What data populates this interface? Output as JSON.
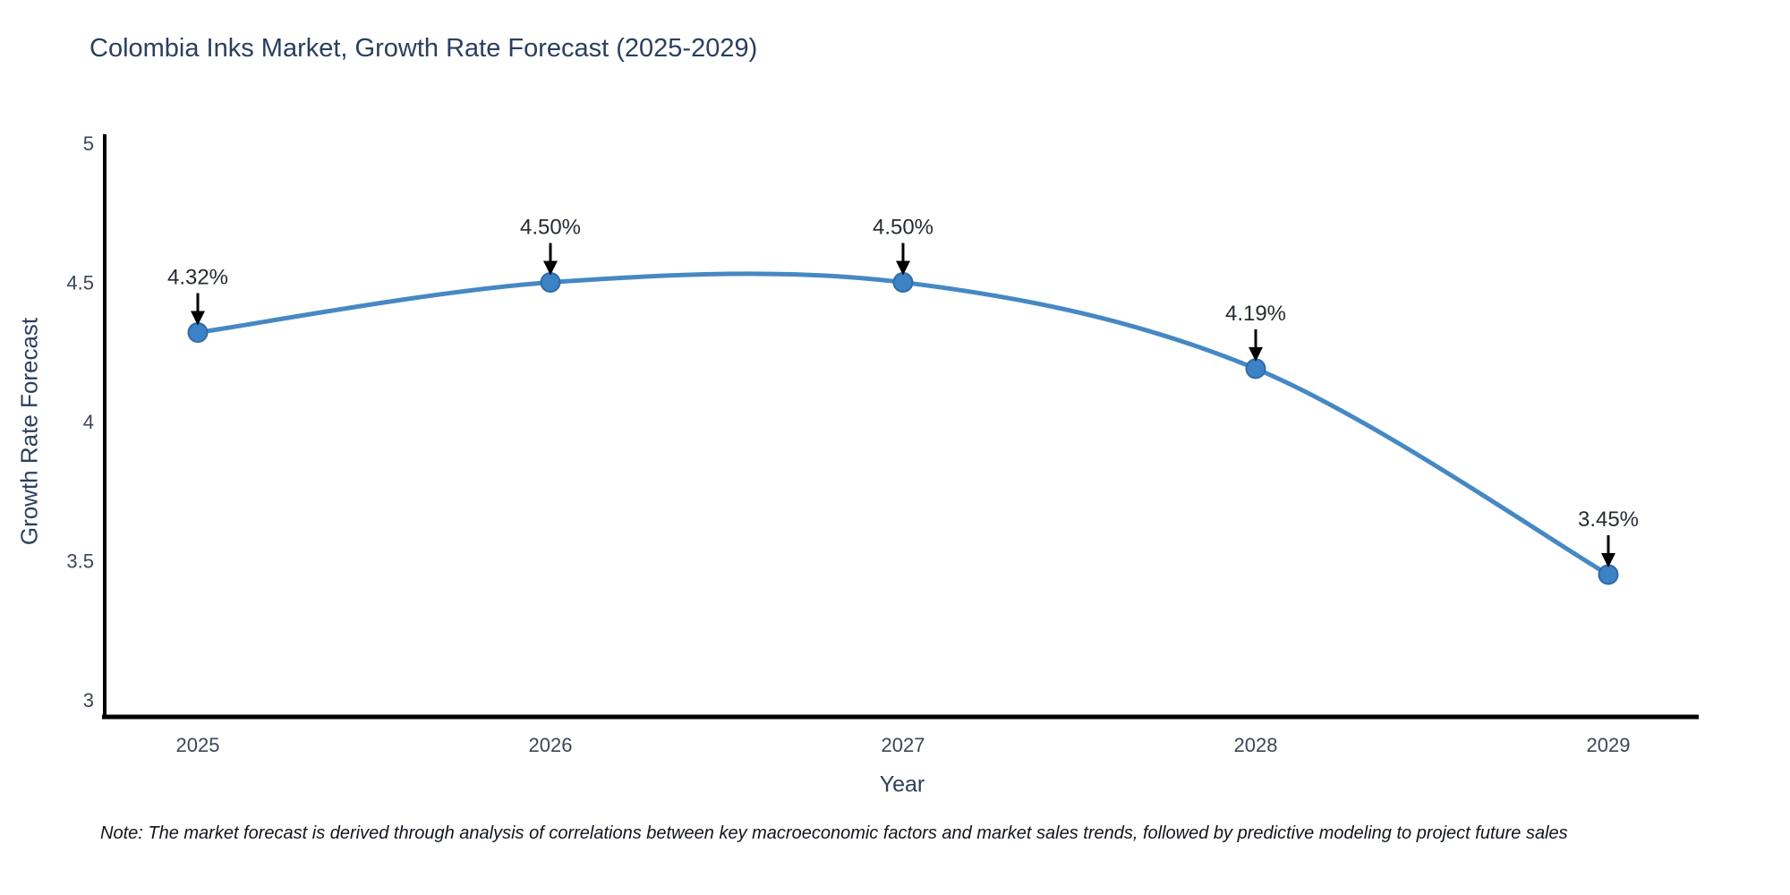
{
  "title": "Colombia Inks Market, Growth Rate Forecast (2025-2029)",
  "note": "Note: The market forecast is derived through analysis of correlations between key macroeconomic factors and market sales trends, followed by predictive modeling to project future sales",
  "chart_data": {
    "type": "line",
    "title": "Colombia Inks Market, Growth Rate Forecast (2025-2029)",
    "x": [
      2025,
      2026,
      2027,
      2028,
      2029
    ],
    "series": [
      {
        "name": "Growth Rate Forecast",
        "values": [
          4.32,
          4.5,
          4.5,
          4.19,
          3.45
        ]
      }
    ],
    "point_labels": [
      "4.32%",
      "4.50%",
      "4.50%",
      "4.19%",
      "3.45%"
    ],
    "xlabel": "Year",
    "ylabel": "Growth Rate Forecast",
    "yticks": [
      3,
      3.5,
      4,
      4.5,
      5
    ],
    "ylim": [
      3,
      5
    ],
    "line_shape": "spline",
    "grid": false,
    "legend": "none",
    "annotations_arrow": true,
    "colors": {
      "line": "#4688c3",
      "marker_fill": "#3d82c4",
      "marker_stroke": "#2f6ba8",
      "axis_line": "#000000",
      "title_text": "#2a3f5f",
      "tick_text": "#3c4657",
      "annotation_text": "#252b33",
      "arrow": "#000000",
      "background": "#ffffff"
    }
  }
}
